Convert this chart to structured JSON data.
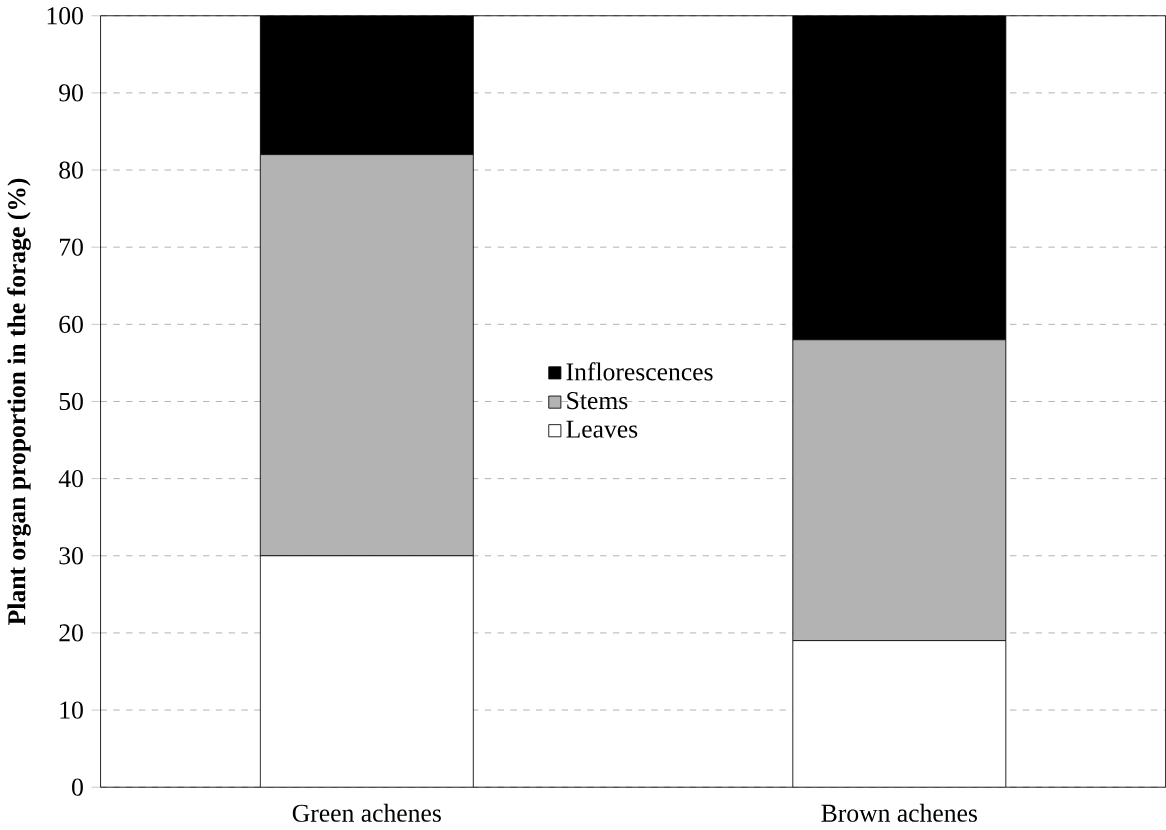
{
  "chart_data": {
    "type": "bar",
    "stacked": true,
    "ylabel": "Plant organ proportion in the forage (%)",
    "categories": [
      "Green achenes",
      "Brown achenes"
    ],
    "series": [
      {
        "name": "Leaves",
        "color": "#ffffff",
        "values": [
          30,
          19
        ]
      },
      {
        "name": "Stems",
        "color": "#b3b3b3",
        "values": [
          52,
          39
        ]
      },
      {
        "name": "Inflorescences",
        "color": "#000000",
        "values": [
          18,
          42
        ]
      }
    ],
    "ylim": [
      0,
      100
    ],
    "yticks": [
      0,
      10,
      20,
      30,
      40,
      50,
      60,
      70,
      80,
      90,
      100
    ],
    "grid": "y",
    "legend": "center"
  }
}
